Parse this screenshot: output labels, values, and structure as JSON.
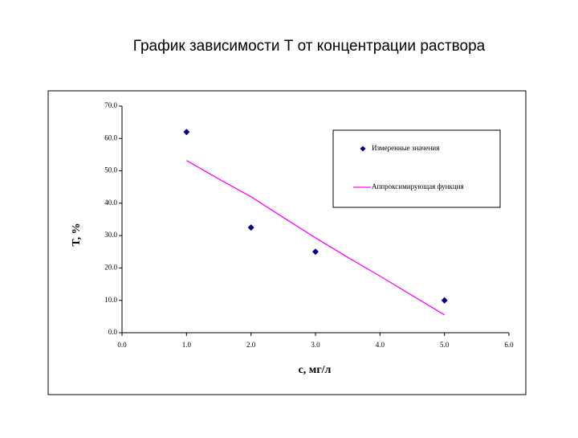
{
  "chart_data": {
    "type": "scatter",
    "title": "График зависимости Т от концентрации раствора",
    "x_label": "c, мг/л",
    "y_label": "T, %",
    "xlim": [
      0,
      6
    ],
    "ylim": [
      0,
      70
    ],
    "xticks": [
      {
        "value": 0,
        "label": "0.0"
      },
      {
        "value": 1,
        "label": "1.0"
      },
      {
        "value": 2,
        "label": "2.0"
      },
      {
        "value": 3,
        "label": "3.0"
      },
      {
        "value": 4,
        "label": "4.0"
      },
      {
        "value": 5,
        "label": "5.0"
      },
      {
        "value": 6,
        "label": "6.0"
      }
    ],
    "yticks": [
      {
        "value": 0,
        "label": "0.0"
      },
      {
        "value": 10,
        "label": "10.0"
      },
      {
        "value": 20,
        "label": "20.0"
      },
      {
        "value": 30,
        "label": "30.0"
      },
      {
        "value": 40,
        "label": "40.0"
      },
      {
        "value": 50,
        "label": "50.0"
      },
      {
        "value": 60,
        "label": "60.0"
      },
      {
        "value": 70,
        "label": "70.0"
      }
    ],
    "legend": "upper right",
    "series": [
      {
        "name": "Измеренные значения",
        "type": "scatter",
        "color": "#000080",
        "x": [
          1,
          2,
          3,
          5
        ],
        "values": [
          62,
          32.5,
          25,
          10
        ]
      },
      {
        "name": "Аппроксимирующая функция",
        "type": "line",
        "color": "#ff00ff",
        "x": [
          1,
          1.5,
          2,
          2.5,
          3,
          3.5,
          4,
          4.5,
          5
        ],
        "values": [
          53.2,
          47.5,
          42,
          35.6,
          29.3,
          23.3,
          17.5,
          11.5,
          5.5
        ]
      }
    ]
  }
}
